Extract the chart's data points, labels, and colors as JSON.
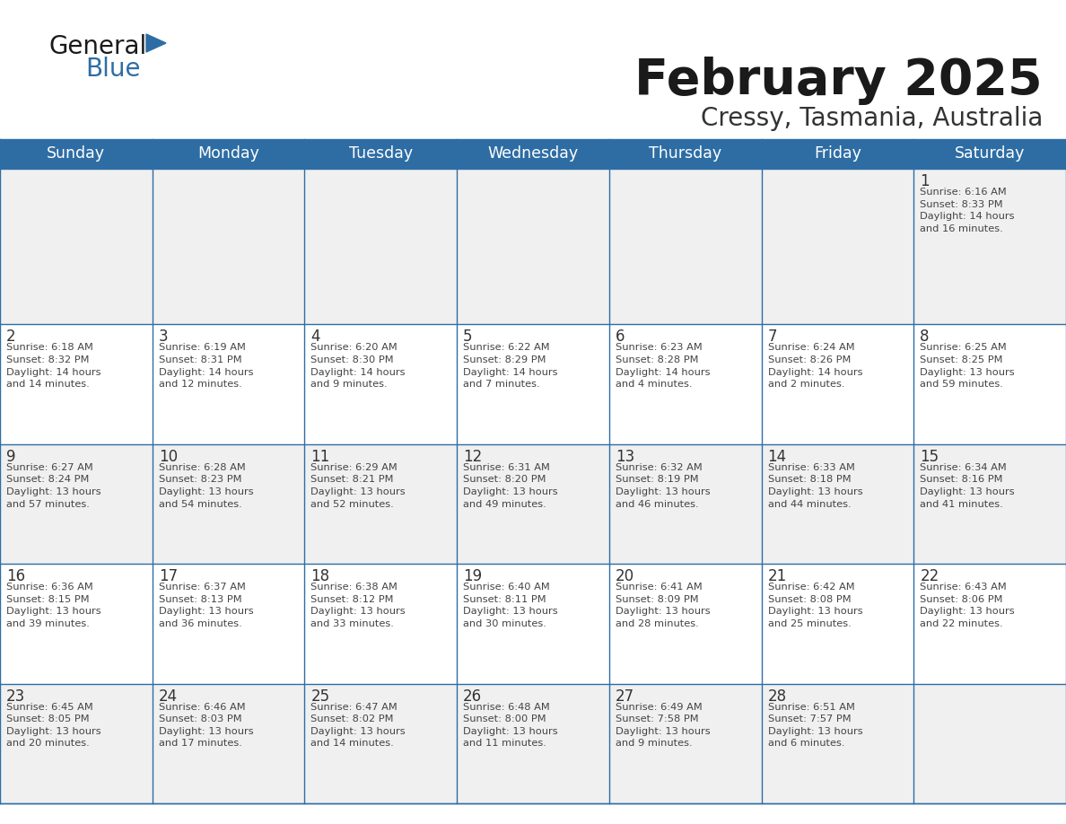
{
  "title": "February 2025",
  "subtitle": "Cressy, Tasmania, Australia",
  "header_bg": "#2E6DA4",
  "header_text_color": "#FFFFFF",
  "cell_bg_odd": "#F0F0F0",
  "cell_bg_even": "#FFFFFF",
  "border_color": "#2E6DA4",
  "day_headers": [
    "Sunday",
    "Monday",
    "Tuesday",
    "Wednesday",
    "Thursday",
    "Friday",
    "Saturday"
  ],
  "text_color": "#444444",
  "day_number_color": "#333333",
  "logo_general_color": "#1a1a1a",
  "logo_blue_color": "#2E6DA4",
  "weeks": [
    [
      {
        "day": null,
        "info": null
      },
      {
        "day": null,
        "info": null
      },
      {
        "day": null,
        "info": null
      },
      {
        "day": null,
        "info": null
      },
      {
        "day": null,
        "info": null
      },
      {
        "day": null,
        "info": null
      },
      {
        "day": 1,
        "info": "Sunrise: 6:16 AM\nSunset: 8:33 PM\nDaylight: 14 hours\nand 16 minutes."
      }
    ],
    [
      {
        "day": 2,
        "info": "Sunrise: 6:18 AM\nSunset: 8:32 PM\nDaylight: 14 hours\nand 14 minutes."
      },
      {
        "day": 3,
        "info": "Sunrise: 6:19 AM\nSunset: 8:31 PM\nDaylight: 14 hours\nand 12 minutes."
      },
      {
        "day": 4,
        "info": "Sunrise: 6:20 AM\nSunset: 8:30 PM\nDaylight: 14 hours\nand 9 minutes."
      },
      {
        "day": 5,
        "info": "Sunrise: 6:22 AM\nSunset: 8:29 PM\nDaylight: 14 hours\nand 7 minutes."
      },
      {
        "day": 6,
        "info": "Sunrise: 6:23 AM\nSunset: 8:28 PM\nDaylight: 14 hours\nand 4 minutes."
      },
      {
        "day": 7,
        "info": "Sunrise: 6:24 AM\nSunset: 8:26 PM\nDaylight: 14 hours\nand 2 minutes."
      },
      {
        "day": 8,
        "info": "Sunrise: 6:25 AM\nSunset: 8:25 PM\nDaylight: 13 hours\nand 59 minutes."
      }
    ],
    [
      {
        "day": 9,
        "info": "Sunrise: 6:27 AM\nSunset: 8:24 PM\nDaylight: 13 hours\nand 57 minutes."
      },
      {
        "day": 10,
        "info": "Sunrise: 6:28 AM\nSunset: 8:23 PM\nDaylight: 13 hours\nand 54 minutes."
      },
      {
        "day": 11,
        "info": "Sunrise: 6:29 AM\nSunset: 8:21 PM\nDaylight: 13 hours\nand 52 minutes."
      },
      {
        "day": 12,
        "info": "Sunrise: 6:31 AM\nSunset: 8:20 PM\nDaylight: 13 hours\nand 49 minutes."
      },
      {
        "day": 13,
        "info": "Sunrise: 6:32 AM\nSunset: 8:19 PM\nDaylight: 13 hours\nand 46 minutes."
      },
      {
        "day": 14,
        "info": "Sunrise: 6:33 AM\nSunset: 8:18 PM\nDaylight: 13 hours\nand 44 minutes."
      },
      {
        "day": 15,
        "info": "Sunrise: 6:34 AM\nSunset: 8:16 PM\nDaylight: 13 hours\nand 41 minutes."
      }
    ],
    [
      {
        "day": 16,
        "info": "Sunrise: 6:36 AM\nSunset: 8:15 PM\nDaylight: 13 hours\nand 39 minutes."
      },
      {
        "day": 17,
        "info": "Sunrise: 6:37 AM\nSunset: 8:13 PM\nDaylight: 13 hours\nand 36 minutes."
      },
      {
        "day": 18,
        "info": "Sunrise: 6:38 AM\nSunset: 8:12 PM\nDaylight: 13 hours\nand 33 minutes."
      },
      {
        "day": 19,
        "info": "Sunrise: 6:40 AM\nSunset: 8:11 PM\nDaylight: 13 hours\nand 30 minutes."
      },
      {
        "day": 20,
        "info": "Sunrise: 6:41 AM\nSunset: 8:09 PM\nDaylight: 13 hours\nand 28 minutes."
      },
      {
        "day": 21,
        "info": "Sunrise: 6:42 AM\nSunset: 8:08 PM\nDaylight: 13 hours\nand 25 minutes."
      },
      {
        "day": 22,
        "info": "Sunrise: 6:43 AM\nSunset: 8:06 PM\nDaylight: 13 hours\nand 22 minutes."
      }
    ],
    [
      {
        "day": 23,
        "info": "Sunrise: 6:45 AM\nSunset: 8:05 PM\nDaylight: 13 hours\nand 20 minutes."
      },
      {
        "day": 24,
        "info": "Sunrise: 6:46 AM\nSunset: 8:03 PM\nDaylight: 13 hours\nand 17 minutes."
      },
      {
        "day": 25,
        "info": "Sunrise: 6:47 AM\nSunset: 8:02 PM\nDaylight: 13 hours\nand 14 minutes."
      },
      {
        "day": 26,
        "info": "Sunrise: 6:48 AM\nSunset: 8:00 PM\nDaylight: 13 hours\nand 11 minutes."
      },
      {
        "day": 27,
        "info": "Sunrise: 6:49 AM\nSunset: 7:58 PM\nDaylight: 13 hours\nand 9 minutes."
      },
      {
        "day": 28,
        "info": "Sunrise: 6:51 AM\nSunset: 7:57 PM\nDaylight: 13 hours\nand 6 minutes."
      },
      {
        "day": null,
        "info": null
      }
    ]
  ]
}
